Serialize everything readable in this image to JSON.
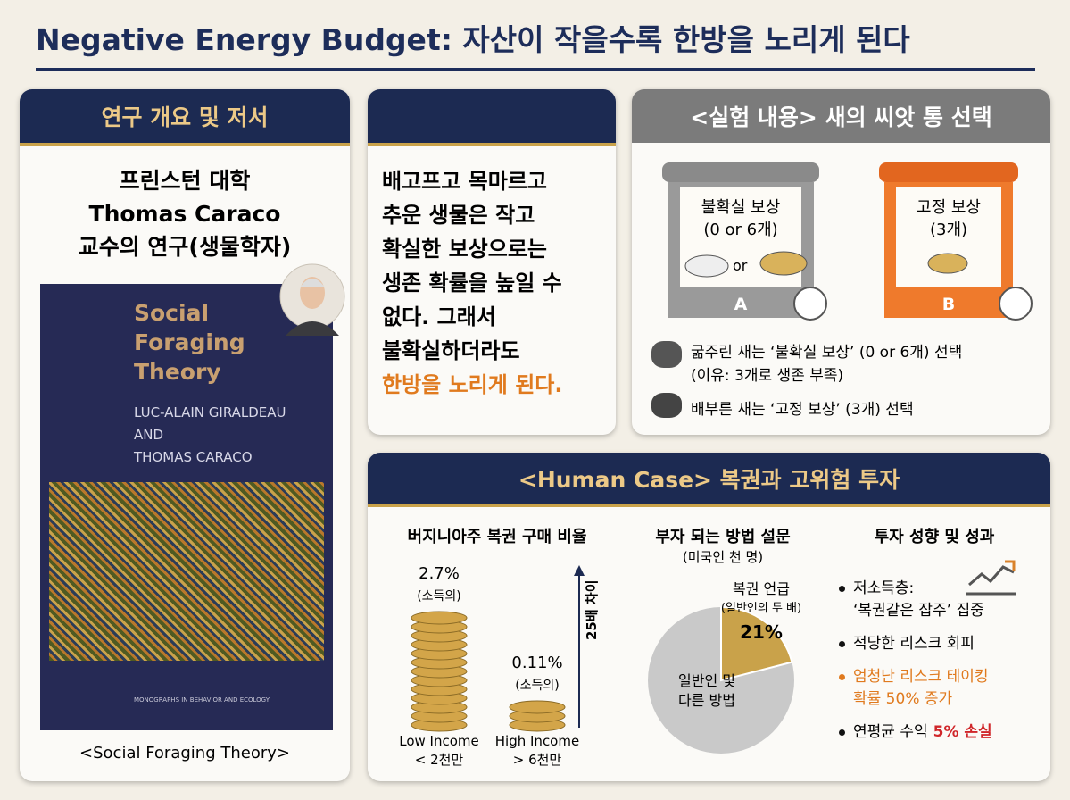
{
  "title": "Negative Energy Budget: 자산이 작을수록 한방을 노리게 된다",
  "overview": {
    "header": "연구 개요 및 저서",
    "lines": [
      "프린스턴 대학",
      "Thomas Caraco",
      "교수의 연구(생물학자)"
    ],
    "book": {
      "title_lines": [
        "Social",
        "Foraging",
        "Theory"
      ],
      "authors": [
        "LUC-ALAIN GIRALDEAU",
        "AND",
        "THOMAS CARACO"
      ],
      "series": "MONOGRAPHS IN BEHAVIOR AND ECOLOGY"
    },
    "caption": "<Social Foraging Theory>"
  },
  "summary": {
    "lines": [
      "배고프고 목마르고",
      "추운 생물은 작고",
      "확실한 보상으로는",
      "생존 확률을 높일 수",
      "없다. 그래서",
      "불확실하더라도"
    ],
    "highlight": "한방을 노리게 된다."
  },
  "experiment": {
    "header": "<실험 내용> 새의 씨앗 통 선택",
    "options": [
      {
        "label": "불확실 보상",
        "detail": "(0 or 6개)",
        "or": "or",
        "letter": "A"
      },
      {
        "label": "고정 보상",
        "detail": "(3개)",
        "letter": "B"
      }
    ],
    "notes": [
      {
        "text": "굶주린 새는 ‘불확실 보상’ (0 or 6개) 선택",
        "sub": "(이유: 3개로 생존 부족)"
      },
      {
        "text": "배부른 새는 ‘고정 보상’ (3개) 선택"
      }
    ]
  },
  "human": {
    "header": "<Human Case> 복권과 고위험 투자",
    "lottery": {
      "title": "버지니아주 복권 구매 비율",
      "low_value": "2.7%",
      "low_note": "(소득의)",
      "high_value": "0.11%",
      "high_note": "(소득의)",
      "diff": "25배 차이",
      "categories": [
        {
          "name": "Low Income",
          "sub": "< 2천만"
        },
        {
          "name": "High Income",
          "sub": "> 6천만"
        }
      ]
    },
    "survey": {
      "title": "부자 되는 방법 설문",
      "subtitle": "(미국인 천 명)",
      "slice": {
        "label": "복권 언급",
        "note": "(일반인의 두 배)",
        "value": 21,
        "value_label": "21%"
      },
      "rest": [
        "일반인 및",
        "다른 방법"
      ]
    },
    "invest": {
      "title": "투자 성향 및 성과",
      "bullets": [
        {
          "lines": [
            "저소득층:",
            "‘복권같은 잡주’ 집중"
          ]
        },
        {
          "lines": [
            "적당한 리스크 회피"
          ]
        },
        {
          "lines": [
            "엄청난 리스크 테이킹",
            "확률 50% 증가"
          ],
          "highlight": true
        },
        {
          "lines": [
            "연평균 수익"
          ],
          "emphasis": "5% 손실"
        }
      ]
    }
  }
}
